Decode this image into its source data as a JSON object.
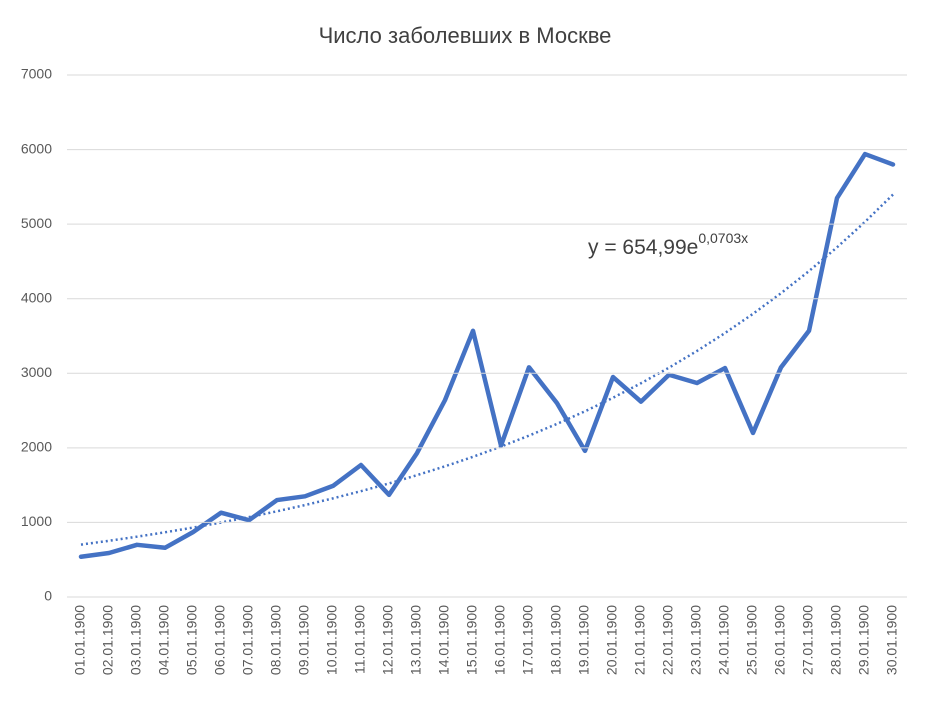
{
  "chart_data": {
    "type": "line",
    "title": "Число заболевших в Москве",
    "categories": [
      "01.01.1900",
      "02.01.1900",
      "03.01.1900",
      "04.01.1900",
      "05.01.1900",
      "06.01.1900",
      "07.01.1900",
      "08.01.1900",
      "09.01.1900",
      "10.01.1900",
      "11.01.1900",
      "12.01.1900",
      "13.01.1900",
      "14.01.1900",
      "15.01.1900",
      "16.01.1900",
      "17.01.1900",
      "18.01.1900",
      "19.01.1900",
      "20.01.1900",
      "21.01.1900",
      "22.01.1900",
      "23.01.1900",
      "24.01.1900",
      "25.01.1900",
      "26.01.1900",
      "27.01.1900",
      "28.01.1900",
      "29.01.1900",
      "30.01.1900"
    ],
    "series": [
      {
        "color": "#4472c4",
        "style": "solid",
        "values": [
          540,
          590,
          700,
          660,
          870,
          1130,
          1030,
          1300,
          1350,
          1490,
          1770,
          1370,
          1930,
          2640,
          3570,
          2030,
          3080,
          2600,
          1960,
          2950,
          2620,
          2980,
          2870,
          3070,
          2200,
          3080,
          3570,
          5350,
          5940,
          5800
        ]
      },
      {
        "color": "#4472c4",
        "style": "dotted",
        "values": [
          702.7,
          753.9,
          808.8,
          867.7,
          930.9,
          998.7,
          1071.4,
          1149.4,
          1233.1,
          1322.9,
          1419.3,
          1522.7,
          1633.6,
          1752.5,
          1880.1,
          2017.0,
          2163.9,
          2321.5,
          2490.6,
          2672.0,
          2866.6,
          3075.4,
          3299.4,
          3539.7,
          3797.5,
          4074.0,
          4370.7,
          4689.0,
          5030.5,
          5396.9
        ]
      }
    ],
    "annotation": {
      "text": "y = 654,99e",
      "superscript": "0,0703x"
    },
    "ylim": [
      0,
      7000
    ],
    "yticks": [
      0,
      1000,
      2000,
      3000,
      4000,
      5000,
      6000,
      7000
    ],
    "grid": true
  }
}
